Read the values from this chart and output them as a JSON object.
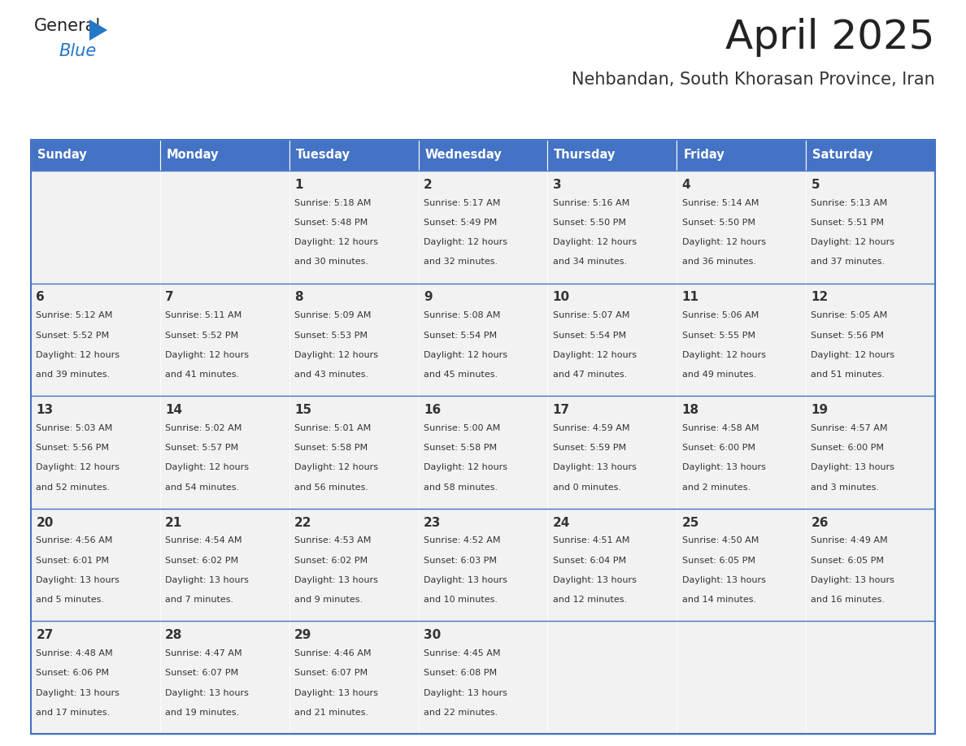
{
  "title": "April 2025",
  "subtitle": "Nehbandan, South Khorasan Province, Iran",
  "header_bg": "#4472C4",
  "header_text_color": "#FFFFFF",
  "cell_bg": "#F2F2F2",
  "text_color": "#333333",
  "line_color": "#4472C4",
  "days_of_week": [
    "Sunday",
    "Monday",
    "Tuesday",
    "Wednesday",
    "Thursday",
    "Friday",
    "Saturday"
  ],
  "calendar_data": [
    [
      {
        "day": "",
        "lines": []
      },
      {
        "day": "",
        "lines": []
      },
      {
        "day": "1",
        "lines": [
          "Sunrise: 5:18 AM",
          "Sunset: 5:48 PM",
          "Daylight: 12 hours",
          "and 30 minutes."
        ]
      },
      {
        "day": "2",
        "lines": [
          "Sunrise: 5:17 AM",
          "Sunset: 5:49 PM",
          "Daylight: 12 hours",
          "and 32 minutes."
        ]
      },
      {
        "day": "3",
        "lines": [
          "Sunrise: 5:16 AM",
          "Sunset: 5:50 PM",
          "Daylight: 12 hours",
          "and 34 minutes."
        ]
      },
      {
        "day": "4",
        "lines": [
          "Sunrise: 5:14 AM",
          "Sunset: 5:50 PM",
          "Daylight: 12 hours",
          "and 36 minutes."
        ]
      },
      {
        "day": "5",
        "lines": [
          "Sunrise: 5:13 AM",
          "Sunset: 5:51 PM",
          "Daylight: 12 hours",
          "and 37 minutes."
        ]
      }
    ],
    [
      {
        "day": "6",
        "lines": [
          "Sunrise: 5:12 AM",
          "Sunset: 5:52 PM",
          "Daylight: 12 hours",
          "and 39 minutes."
        ]
      },
      {
        "day": "7",
        "lines": [
          "Sunrise: 5:11 AM",
          "Sunset: 5:52 PM",
          "Daylight: 12 hours",
          "and 41 minutes."
        ]
      },
      {
        "day": "8",
        "lines": [
          "Sunrise: 5:09 AM",
          "Sunset: 5:53 PM",
          "Daylight: 12 hours",
          "and 43 minutes."
        ]
      },
      {
        "day": "9",
        "lines": [
          "Sunrise: 5:08 AM",
          "Sunset: 5:54 PM",
          "Daylight: 12 hours",
          "and 45 minutes."
        ]
      },
      {
        "day": "10",
        "lines": [
          "Sunrise: 5:07 AM",
          "Sunset: 5:54 PM",
          "Daylight: 12 hours",
          "and 47 minutes."
        ]
      },
      {
        "day": "11",
        "lines": [
          "Sunrise: 5:06 AM",
          "Sunset: 5:55 PM",
          "Daylight: 12 hours",
          "and 49 minutes."
        ]
      },
      {
        "day": "12",
        "lines": [
          "Sunrise: 5:05 AM",
          "Sunset: 5:56 PM",
          "Daylight: 12 hours",
          "and 51 minutes."
        ]
      }
    ],
    [
      {
        "day": "13",
        "lines": [
          "Sunrise: 5:03 AM",
          "Sunset: 5:56 PM",
          "Daylight: 12 hours",
          "and 52 minutes."
        ]
      },
      {
        "day": "14",
        "lines": [
          "Sunrise: 5:02 AM",
          "Sunset: 5:57 PM",
          "Daylight: 12 hours",
          "and 54 minutes."
        ]
      },
      {
        "day": "15",
        "lines": [
          "Sunrise: 5:01 AM",
          "Sunset: 5:58 PM",
          "Daylight: 12 hours",
          "and 56 minutes."
        ]
      },
      {
        "day": "16",
        "lines": [
          "Sunrise: 5:00 AM",
          "Sunset: 5:58 PM",
          "Daylight: 12 hours",
          "and 58 minutes."
        ]
      },
      {
        "day": "17",
        "lines": [
          "Sunrise: 4:59 AM",
          "Sunset: 5:59 PM",
          "Daylight: 13 hours",
          "and 0 minutes."
        ]
      },
      {
        "day": "18",
        "lines": [
          "Sunrise: 4:58 AM",
          "Sunset: 6:00 PM",
          "Daylight: 13 hours",
          "and 2 minutes."
        ]
      },
      {
        "day": "19",
        "lines": [
          "Sunrise: 4:57 AM",
          "Sunset: 6:00 PM",
          "Daylight: 13 hours",
          "and 3 minutes."
        ]
      }
    ],
    [
      {
        "day": "20",
        "lines": [
          "Sunrise: 4:56 AM",
          "Sunset: 6:01 PM",
          "Daylight: 13 hours",
          "and 5 minutes."
        ]
      },
      {
        "day": "21",
        "lines": [
          "Sunrise: 4:54 AM",
          "Sunset: 6:02 PM",
          "Daylight: 13 hours",
          "and 7 minutes."
        ]
      },
      {
        "day": "22",
        "lines": [
          "Sunrise: 4:53 AM",
          "Sunset: 6:02 PM",
          "Daylight: 13 hours",
          "and 9 minutes."
        ]
      },
      {
        "day": "23",
        "lines": [
          "Sunrise: 4:52 AM",
          "Sunset: 6:03 PM",
          "Daylight: 13 hours",
          "and 10 minutes."
        ]
      },
      {
        "day": "24",
        "lines": [
          "Sunrise: 4:51 AM",
          "Sunset: 6:04 PM",
          "Daylight: 13 hours",
          "and 12 minutes."
        ]
      },
      {
        "day": "25",
        "lines": [
          "Sunrise: 4:50 AM",
          "Sunset: 6:05 PM",
          "Daylight: 13 hours",
          "and 14 minutes."
        ]
      },
      {
        "day": "26",
        "lines": [
          "Sunrise: 4:49 AM",
          "Sunset: 6:05 PM",
          "Daylight: 13 hours",
          "and 16 minutes."
        ]
      }
    ],
    [
      {
        "day": "27",
        "lines": [
          "Sunrise: 4:48 AM",
          "Sunset: 6:06 PM",
          "Daylight: 13 hours",
          "and 17 minutes."
        ]
      },
      {
        "day": "28",
        "lines": [
          "Sunrise: 4:47 AM",
          "Sunset: 6:07 PM",
          "Daylight: 13 hours",
          "and 19 minutes."
        ]
      },
      {
        "day": "29",
        "lines": [
          "Sunrise: 4:46 AM",
          "Sunset: 6:07 PM",
          "Daylight: 13 hours",
          "and 21 minutes."
        ]
      },
      {
        "day": "30",
        "lines": [
          "Sunrise: 4:45 AM",
          "Sunset: 6:08 PM",
          "Daylight: 13 hours",
          "and 22 minutes."
        ]
      },
      {
        "day": "",
        "lines": []
      },
      {
        "day": "",
        "lines": []
      },
      {
        "day": "",
        "lines": []
      }
    ]
  ]
}
